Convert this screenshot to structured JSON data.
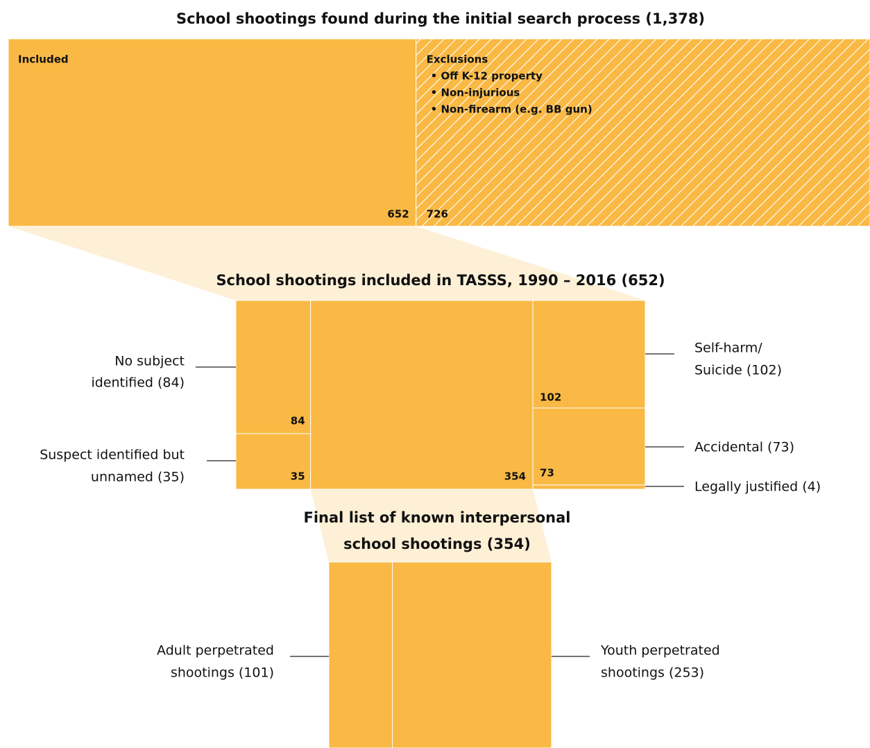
{
  "section1": {
    "title": "School shootings found during the initial search process (1,378)",
    "included": {
      "label": "Included",
      "value": 652
    },
    "exclusions": {
      "label": "Exclusions",
      "items": [
        "• Off K-12 property",
        "• Non-injurious",
        "• Non-firearm (e.g. BB gun)"
      ],
      "value": 726
    }
  },
  "section2": {
    "title": "School shootings included in TASSS, 1990 – 2016 (652)",
    "no_subject": {
      "label": [
        "No subject",
        "identified (84)"
      ],
      "value": 84
    },
    "suspect_unnamed": {
      "label": [
        "Suspect identified but",
        "unnamed (35)"
      ],
      "value": 35
    },
    "interpersonal": {
      "value": 354
    },
    "self_harm": {
      "label": [
        "Self-harm/",
        "Suicide (102)"
      ],
      "value": 102
    },
    "accidental": {
      "label": [
        "Accidental (73)"
      ],
      "value": 73
    },
    "legally_justified": {
      "label": [
        "Legally justified (4)"
      ],
      "value": 4
    }
  },
  "section3": {
    "title": [
      "Final list of known interpersonal",
      "school shootings (354)"
    ],
    "adult": {
      "label": [
        "Adult perpetrated",
        "shootings (101)"
      ],
      "value": 101
    },
    "youth": {
      "label": [
        "Youth perpetrated",
        "shootings (253)"
      ],
      "value": 253
    }
  }
}
